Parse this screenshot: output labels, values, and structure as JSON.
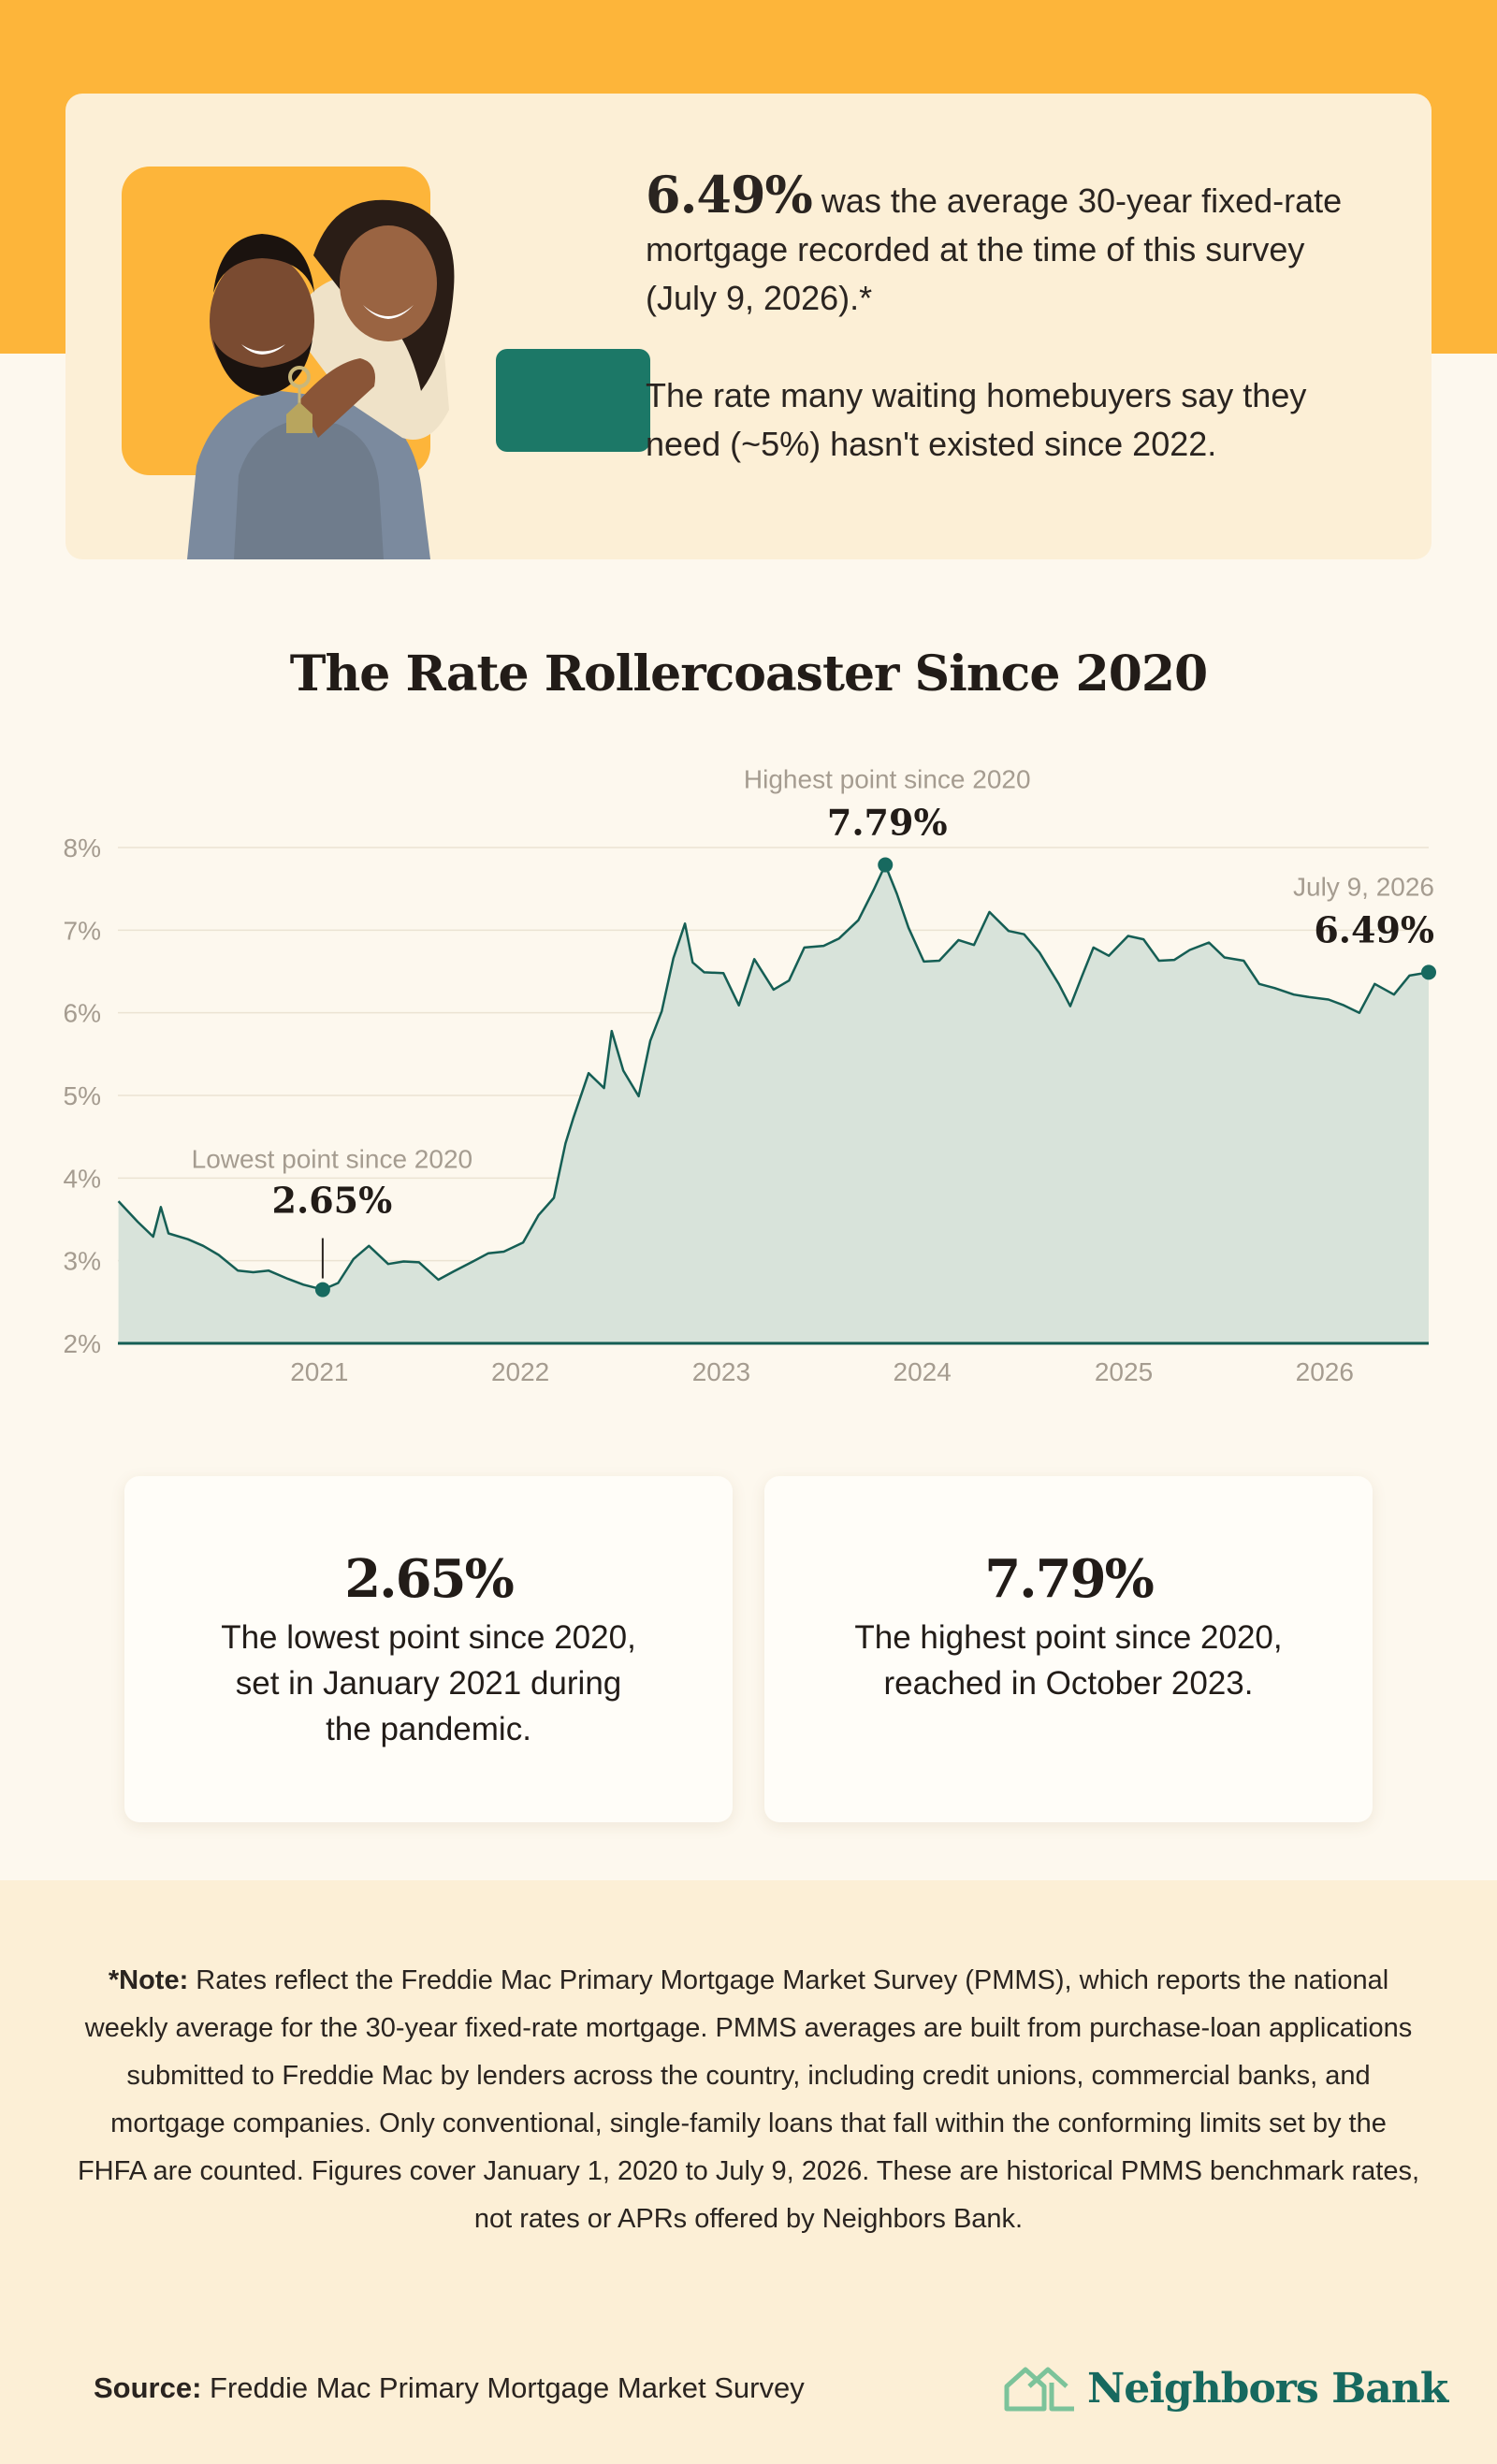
{
  "hero": {
    "rate_value": "6.49%",
    "rate_text": " was the average 30-year fixed-rate mortgage recorded at the time of this survey (July 9, 2026).*",
    "wait_text": "The rate many waiting homebuyers say they need (~5%) hasn't existed since 2022.",
    "photo_icon": "couple-holding-house-keys-photo"
  },
  "colors": {
    "accent_yellow": "#fdb53a",
    "card_cream": "#fcefd6",
    "page_bg": "#fdf8ee",
    "teal": "#17695f",
    "fill_sage": "#d8e3da"
  },
  "chart_data": {
    "type": "area",
    "title": "The Rate Rollercoaster Since 2020",
    "xlabel": "",
    "ylabel": "",
    "xlim": [
      "2020-01-01",
      "2026-07-09"
    ],
    "ylim": [
      2,
      8
    ],
    "yticks": [
      2,
      3,
      4,
      5,
      6,
      7,
      8
    ],
    "ytick_labels": [
      "2%",
      "3%",
      "4%",
      "5%",
      "6%",
      "7%",
      "8%"
    ],
    "xticks": [
      "2021-01-01",
      "2022-01-01",
      "2023-01-01",
      "2024-01-01",
      "2025-01-01",
      "2026-01-01"
    ],
    "xtick_labels": [
      "2021",
      "2022",
      "2023",
      "2024",
      "2025",
      "2026"
    ],
    "grid": true,
    "series": [
      {
        "x": [
          "2020-01-02",
          "2020-02-06",
          "2020-03-05",
          "2020-03-19",
          "2020-04-02",
          "2020-05-07",
          "2020-06-04",
          "2020-07-02",
          "2020-08-06",
          "2020-09-03",
          "2020-10-01",
          "2020-11-05",
          "2020-12-03",
          "2021-01-07",
          "2021-02-04",
          "2021-03-04",
          "2021-04-01",
          "2021-05-06",
          "2021-06-03",
          "2021-07-01",
          "2021-08-05",
          "2021-09-02",
          "2021-10-07",
          "2021-11-04",
          "2021-12-02",
          "2022-01-06",
          "2022-02-03",
          "2022-03-03",
          "2022-03-24",
          "2022-04-07",
          "2022-05-05",
          "2022-06-02",
          "2022-06-16",
          "2022-07-07",
          "2022-08-04",
          "2022-08-25",
          "2022-09-15",
          "2022-10-06",
          "2022-10-27",
          "2022-11-10",
          "2022-12-01",
          "2023-01-05",
          "2023-02-02",
          "2023-03-02",
          "2023-04-06",
          "2023-05-04",
          "2023-06-01",
          "2023-07-06",
          "2023-08-03",
          "2023-09-07",
          "2023-10-05",
          "2023-10-26",
          "2023-11-16",
          "2023-12-07",
          "2024-01-04",
          "2024-02-01",
          "2024-03-07",
          "2024-04-04",
          "2024-05-02",
          "2024-06-06",
          "2024-07-04",
          "2024-08-01",
          "2024-09-05",
          "2024-09-26",
          "2024-10-17",
          "2024-11-07",
          "2024-12-05",
          "2025-01-09",
          "2025-02-06",
          "2025-03-06",
          "2025-04-03",
          "2025-05-01",
          "2025-06-05",
          "2025-07-03",
          "2025-08-07",
          "2025-09-04",
          "2025-10-02",
          "2025-11-06",
          "2025-12-04",
          "2026-01-08",
          "2026-02-05",
          "2026-03-05",
          "2026-04-02",
          "2026-05-07",
          "2026-06-04",
          "2026-07-09"
        ],
        "values": [
          3.72,
          3.47,
          3.29,
          3.65,
          3.33,
          3.26,
          3.18,
          3.07,
          2.88,
          2.86,
          2.88,
          2.78,
          2.71,
          2.65,
          2.73,
          3.02,
          3.18,
          2.96,
          2.99,
          2.98,
          2.77,
          2.87,
          2.99,
          3.09,
          3.11,
          3.22,
          3.55,
          3.76,
          4.42,
          4.72,
          5.27,
          5.09,
          5.78,
          5.3,
          4.99,
          5.66,
          6.02,
          6.66,
          7.08,
          6.61,
          6.49,
          6.48,
          6.09,
          6.65,
          6.28,
          6.39,
          6.79,
          6.81,
          6.9,
          7.12,
          7.49,
          7.79,
          7.44,
          7.03,
          6.62,
          6.63,
          6.88,
          6.82,
          7.22,
          6.99,
          6.95,
          6.73,
          6.35,
          6.08,
          6.44,
          6.79,
          6.69,
          6.93,
          6.89,
          6.63,
          6.64,
          6.76,
          6.85,
          6.67,
          6.63,
          6.35,
          6.3,
          6.22,
          6.19,
          6.16,
          6.09,
          6.0,
          6.35,
          6.22,
          6.45,
          6.49
        ]
      }
    ],
    "annotations": [
      {
        "label": "Lowest point since 2020",
        "value_label": "2.65%",
        "x": "2021-01-07",
        "y": 2.65
      },
      {
        "label": "Highest point since 2020",
        "value_label": "7.79%",
        "x": "2023-10-26",
        "y": 7.79
      },
      {
        "label": "July 9, 2026",
        "value_label": "6.49%",
        "x": "2026-07-09",
        "y": 6.49
      }
    ]
  },
  "stats": {
    "low_value": "2.65%",
    "low_desc": "The lowest point since 2020, set in January 2021 during the pandemic.",
    "high_value": "7.79%",
    "high_desc": "The highest point since 2020, reached in October 2023."
  },
  "note": {
    "lead": "*Note:",
    "text": " Rates reflect the Freddie Mac Primary Mortgage Market Survey (PMMS), which reports the national weekly average for the 30-year fixed-rate mortgage. PMMS averages are built from purchase-loan applications submitted to Freddie Mac by lenders across the country, including credit unions, commercial banks, and mortgage companies. Only conventional, single-family loans that fall within the conforming limits set by the FHFA are counted. Figures cover January 1, 2020 to July 9, 2026. These are historical PMMS benchmark rates, not rates or APRs offered by Neighbors Bank."
  },
  "source": {
    "lead": "Source:",
    "text": " Freddie Mac Primary Mortgage Market Survey"
  },
  "brand": {
    "name": "Neighbors Bank",
    "logo_icon": "house-outline-logo-icon"
  }
}
